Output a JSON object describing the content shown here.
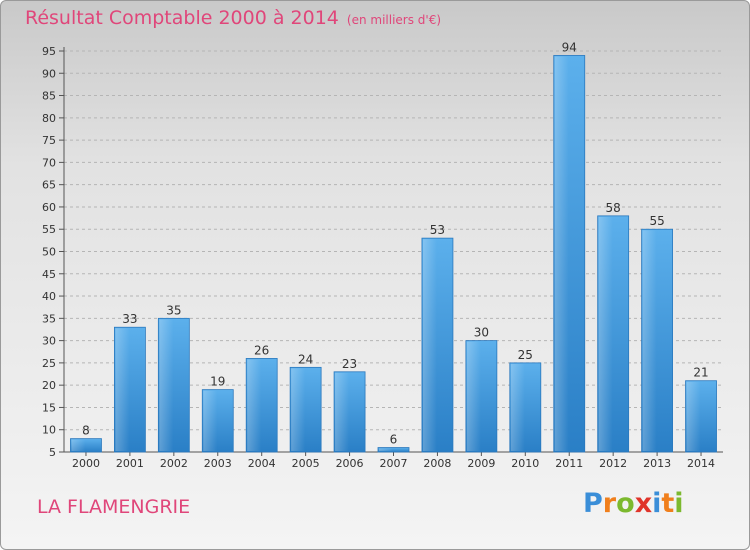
{
  "title": "Résultat Comptable 2000 à 2014",
  "unit": "(en milliers d'€)",
  "town": "LA FLAMENGRIE",
  "logo": {
    "letters": [
      "P",
      "r",
      "o",
      "x",
      "i",
      "t",
      "i"
    ],
    "colors": [
      "#3a8ed8",
      "#f07f1c",
      "#7cb92e",
      "#e0342a",
      "#3a8ed8",
      "#f07f1c",
      "#7cb92e"
    ]
  },
  "colors": {
    "title": "#e0467a",
    "bar": "#4aa3e3"
  },
  "chart_data": {
    "type": "bar",
    "categories": [
      "2000",
      "2001",
      "2002",
      "2003",
      "2004",
      "2005",
      "2006",
      "2007",
      "2008",
      "2009",
      "2010",
      "2011",
      "2012",
      "2013",
      "2014"
    ],
    "values": [
      8,
      33,
      35,
      19,
      26,
      24,
      23,
      6,
      53,
      30,
      25,
      94,
      58,
      55,
      21
    ],
    "ylim": [
      5,
      95
    ],
    "yticks": [
      5,
      10,
      15,
      20,
      25,
      30,
      35,
      40,
      45,
      50,
      55,
      60,
      65,
      70,
      75,
      80,
      85,
      90,
      95
    ],
    "grid": true
  }
}
